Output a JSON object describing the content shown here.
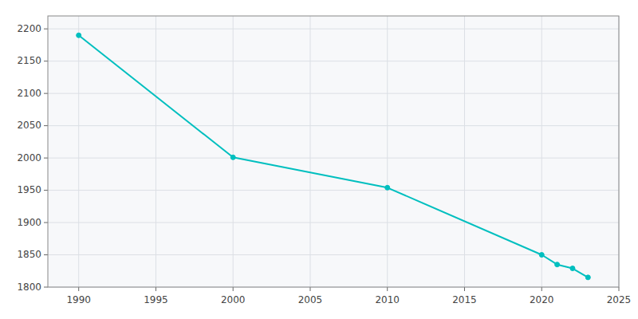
{
  "chart_data": {
    "type": "line",
    "x": [
      1990,
      2000,
      2010,
      2020,
      2021,
      2022,
      2023
    ],
    "values": [
      2190,
      2001,
      1954,
      1850,
      1835,
      1829,
      1815
    ],
    "color": "#00BFBF",
    "marker": "circle",
    "xlim": [
      1988,
      2025
    ],
    "ylim": [
      1800,
      2220
    ],
    "xticks": [
      1990,
      1995,
      2000,
      2005,
      2010,
      2015,
      2020,
      2025
    ],
    "yticks": [
      1800,
      1850,
      1900,
      1950,
      2000,
      2050,
      2100,
      2150,
      2200
    ],
    "grid": true
  }
}
